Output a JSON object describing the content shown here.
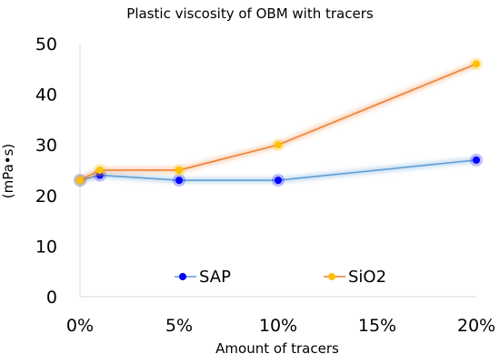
{
  "chart_data": {
    "type": "line",
    "title": "Plastic viscosity of OBM with tracers",
    "xlabel": "Amount of tracers",
    "ylabel": "(mPa•s)",
    "x_values": [
      0,
      1,
      5,
      10,
      20
    ],
    "x_ticks": [
      0,
      5,
      10,
      15,
      20
    ],
    "x_tick_labels": [
      "0%",
      "5%",
      "10%",
      "15%",
      "20%"
    ],
    "xlim": [
      0,
      20
    ],
    "ylim": [
      0,
      50
    ],
    "y_ticks": [
      0,
      10,
      20,
      30,
      40,
      50
    ],
    "grid": false,
    "legend_position": "bottom-center",
    "series": [
      {
        "name": "SAP",
        "values": [
          23,
          24,
          23,
          23,
          27
        ],
        "color": "#0000ff",
        "line_color": "#5b9bd5"
      },
      {
        "name": "SiO2",
        "values": [
          23,
          25,
          25,
          30,
          46
        ],
        "color": "#ffc000",
        "line_color": "#ed7d31"
      }
    ]
  }
}
